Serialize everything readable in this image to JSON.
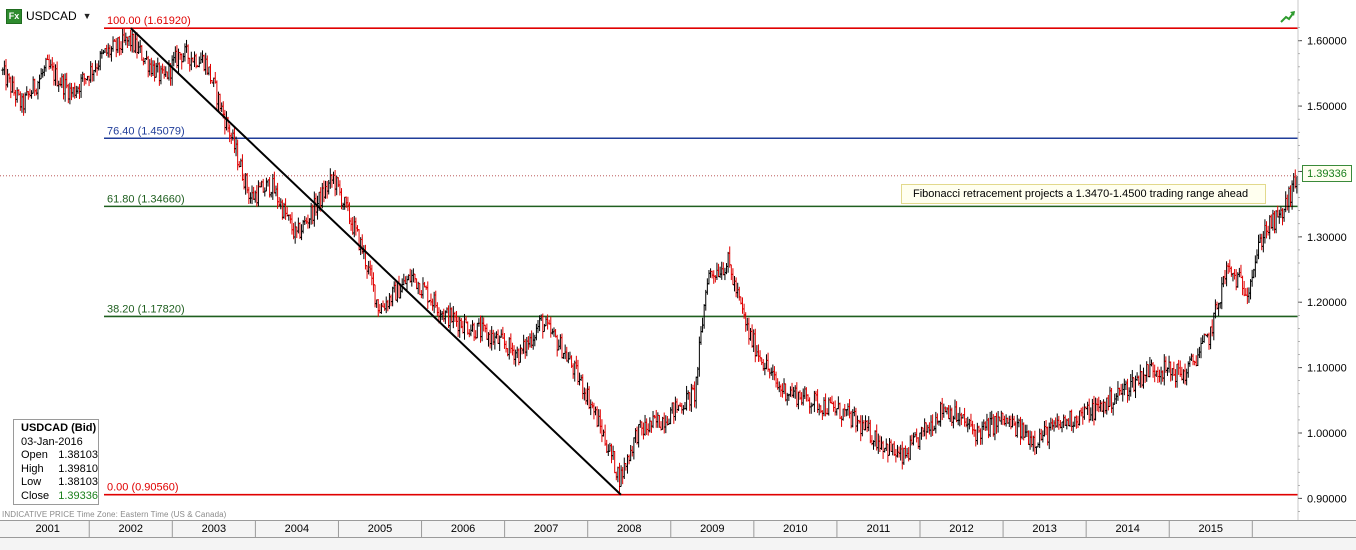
{
  "toolbar": {
    "symbol": "USDCAD",
    "icon": "fx-icon",
    "dropdown_icon": "chevron-down-icon"
  },
  "info_box": {
    "title": "USDCAD (Bid)",
    "date": "03-Jan-2016",
    "rows": [
      {
        "label": "Open",
        "value": "1.38103"
      },
      {
        "label": "High",
        "value": "1.39810"
      },
      {
        "label": "Low",
        "value": "1.38103"
      },
      {
        "label": "Close",
        "value": "1.39336"
      }
    ]
  },
  "last_price_tag": "1.39336",
  "annotation": "Fibonacci retracement projects a 1.3470-1.4500 trading range ahead",
  "footer_note": "INDICATIVE PRICE    Time Zone: Eastern Time (US & Canada)",
  "colors": {
    "up": "#000000",
    "down": "#e00000",
    "fib_red": "#e00000",
    "fib_blue": "#1f3c99",
    "fib_green": "#1f5f1f",
    "trend": "#000000"
  },
  "chart_data": {
    "type": "candlestick",
    "symbol": "USDCAD",
    "ylim": [
      0.87,
      1.65
    ],
    "y_ticks": [
      "0.90000",
      "1.00000",
      "1.10000",
      "1.20000",
      "1.30000",
      "1.40000",
      "1.50000",
      "1.60000"
    ],
    "y_tick_values": [
      0.9,
      1.0,
      1.1,
      1.2,
      1.3,
      1.4,
      1.5,
      1.6
    ],
    "x_labels": [
      "2001",
      "2002",
      "2003",
      "2004",
      "2005",
      "2006",
      "2007",
      "2008",
      "2009",
      "2010",
      "2011",
      "2012",
      "2013",
      "2014",
      "2015"
    ],
    "x_start_year": 2000.45,
    "x_end_year": 2016.05,
    "fib_levels": [
      {
        "label": "100.00 (1.61920)",
        "value": 1.6192,
        "color": "red"
      },
      {
        "label": "76.40 (1.45079)",
        "value": 1.45079,
        "color": "blue"
      },
      {
        "label": "61.80 (1.34660)",
        "value": 1.3466,
        "color": "green"
      },
      {
        "label": "38.20 (1.17820)",
        "value": 1.1782,
        "color": "green"
      },
      {
        "label": "0.00 (0.90560)",
        "value": 0.9056,
        "color": "red"
      }
    ],
    "trendline": {
      "from": {
        "year": 2002.0,
        "value": 1.6192
      },
      "to": {
        "year": 2007.9,
        "value": 0.9056
      }
    },
    "last_close": 1.39336,
    "price_path": [
      {
        "year": 2000.45,
        "value": 1.555
      },
      {
        "year": 2000.7,
        "value": 1.5
      },
      {
        "year": 2001.0,
        "value": 1.56
      },
      {
        "year": 2001.3,
        "value": 1.52
      },
      {
        "year": 2001.7,
        "value": 1.58
      },
      {
        "year": 2002.0,
        "value": 1.6
      },
      {
        "year": 2002.4,
        "value": 1.54
      },
      {
        "year": 2002.6,
        "value": 1.58
      },
      {
        "year": 2002.9,
        "value": 1.57
      },
      {
        "year": 2003.2,
        "value": 1.46
      },
      {
        "year": 2003.45,
        "value": 1.36
      },
      {
        "year": 2003.7,
        "value": 1.38
      },
      {
        "year": 2004.0,
        "value": 1.3
      },
      {
        "year": 2004.3,
        "value": 1.36
      },
      {
        "year": 2004.45,
        "value": 1.39
      },
      {
        "year": 2004.8,
        "value": 1.28
      },
      {
        "year": 2005.0,
        "value": 1.19
      },
      {
        "year": 2005.4,
        "value": 1.24
      },
      {
        "year": 2005.8,
        "value": 1.18
      },
      {
        "year": 2006.3,
        "value": 1.15
      },
      {
        "year": 2006.7,
        "value": 1.12
      },
      {
        "year": 2006.95,
        "value": 1.17
      },
      {
        "year": 2007.2,
        "value": 1.13
      },
      {
        "year": 2007.5,
        "value": 1.06
      },
      {
        "year": 2007.75,
        "value": 0.98
      },
      {
        "year": 2007.9,
        "value": 0.93
      },
      {
        "year": 2008.1,
        "value": 1.0
      },
      {
        "year": 2008.4,
        "value": 1.02
      },
      {
        "year": 2008.8,
        "value": 1.06
      },
      {
        "year": 2008.95,
        "value": 1.24
      },
      {
        "year": 2009.2,
        "value": 1.26
      },
      {
        "year": 2009.45,
        "value": 1.15
      },
      {
        "year": 2009.8,
        "value": 1.07
      },
      {
        "year": 2010.2,
        "value": 1.05
      },
      {
        "year": 2010.6,
        "value": 1.03
      },
      {
        "year": 2011.0,
        "value": 0.99
      },
      {
        "year": 2011.3,
        "value": 0.96
      },
      {
        "year": 2011.55,
        "value": 1.0
      },
      {
        "year": 2011.8,
        "value": 1.04
      },
      {
        "year": 2012.2,
        "value": 1.0
      },
      {
        "year": 2012.5,
        "value": 1.02
      },
      {
        "year": 2012.9,
        "value": 0.99
      },
      {
        "year": 2013.3,
        "value": 1.02
      },
      {
        "year": 2013.7,
        "value": 1.04
      },
      {
        "year": 2014.0,
        "value": 1.07
      },
      {
        "year": 2014.3,
        "value": 1.1
      },
      {
        "year": 2014.7,
        "value": 1.09
      },
      {
        "year": 2015.0,
        "value": 1.15
      },
      {
        "year": 2015.2,
        "value": 1.25
      },
      {
        "year": 2015.45,
        "value": 1.22
      },
      {
        "year": 2015.65,
        "value": 1.31
      },
      {
        "year": 2015.85,
        "value": 1.33
      },
      {
        "year": 2016.05,
        "value": 1.39
      }
    ]
  }
}
